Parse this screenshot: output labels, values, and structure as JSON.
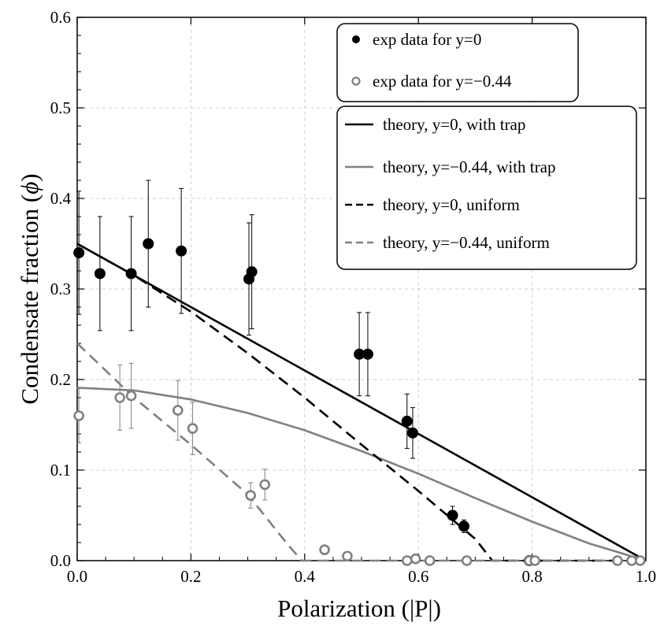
{
  "chart_data": {
    "type": "scatter",
    "title": "",
    "xlabel": "Polarization (|P|)",
    "ylabel_prefix": "Condensate fraction (",
    "ylabel_symbol": "ϕ",
    "ylabel_suffix": ")",
    "xlim": [
      0,
      1
    ],
    "ylim": [
      0,
      0.6
    ],
    "x_ticks": [
      0,
      0.2,
      0.4,
      0.6,
      0.8,
      1.0
    ],
    "x_tick_labels": [
      "0.0",
      "0.2",
      "0.4",
      "0.6",
      "0.8",
      "1.0"
    ],
    "y_ticks": [
      0,
      0.1,
      0.2,
      0.3,
      0.4,
      0.5,
      0.6
    ],
    "y_tick_labels": [
      "0.0",
      "0.1",
      "0.2",
      "0.3",
      "0.4",
      "0.5",
      "0.6"
    ],
    "grid": true,
    "legend_position": "top-right",
    "colors": {
      "black": "#000000",
      "gray": "#808080"
    },
    "scatter_series": [
      {
        "name": "exp data for y=0",
        "marker": "filled-circle",
        "color": "#000000",
        "points": [
          {
            "x": 0.003,
            "y": 0.34,
            "err": 0.068
          },
          {
            "x": 0.04,
            "y": 0.317,
            "err": 0.063
          },
          {
            "x": 0.095,
            "y": 0.317,
            "err": 0.063
          },
          {
            "x": 0.125,
            "y": 0.35,
            "err": 0.07
          },
          {
            "x": 0.183,
            "y": 0.342,
            "err": 0.069
          },
          {
            "x": 0.302,
            "y": 0.311,
            "err": 0.062
          },
          {
            "x": 0.307,
            "y": 0.319,
            "err": 0.063
          },
          {
            "x": 0.496,
            "y": 0.228,
            "err": 0.046
          },
          {
            "x": 0.511,
            "y": 0.228,
            "err": 0.046
          },
          {
            "x": 0.58,
            "y": 0.154,
            "err": 0.03
          },
          {
            "x": 0.59,
            "y": 0.141,
            "err": 0.028
          },
          {
            "x": 0.66,
            "y": 0.05,
            "err": 0.01
          },
          {
            "x": 0.68,
            "y": 0.038,
            "err": 0.007
          },
          {
            "x": 0.795,
            "y": 0.0,
            "err": 0.0
          }
        ]
      },
      {
        "name": "exp data for y=−0.44",
        "marker": "open-circle",
        "color": "#808080",
        "points": [
          {
            "x": 0.003,
            "y": 0.16,
            "err": 0.03
          },
          {
            "x": 0.075,
            "y": 0.18,
            "err": 0.036
          },
          {
            "x": 0.095,
            "y": 0.182,
            "err": 0.036
          },
          {
            "x": 0.177,
            "y": 0.166,
            "err": 0.033
          },
          {
            "x": 0.203,
            "y": 0.146,
            "err": 0.029
          },
          {
            "x": 0.305,
            "y": 0.072,
            "err": 0.014
          },
          {
            "x": 0.33,
            "y": 0.084,
            "err": 0.017
          },
          {
            "x": 0.435,
            "y": 0.012,
            "err": 0.003
          },
          {
            "x": 0.475,
            "y": 0.005,
            "err": 0.001
          },
          {
            "x": 0.58,
            "y": 0.0,
            "err": 0.0
          },
          {
            "x": 0.595,
            "y": 0.002,
            "err": 0.0
          },
          {
            "x": 0.62,
            "y": 0.0,
            "err": 0.0
          },
          {
            "x": 0.685,
            "y": 0.0,
            "err": 0.0
          },
          {
            "x": 0.795,
            "y": 0.0,
            "err": 0.0
          },
          {
            "x": 0.805,
            "y": 0.0,
            "err": 0.0
          },
          {
            "x": 0.95,
            "y": 0.0,
            "err": 0.0
          },
          {
            "x": 0.975,
            "y": 0.0,
            "err": 0.0
          },
          {
            "x": 0.99,
            "y": 0.0,
            "err": 0.0
          }
        ]
      }
    ],
    "line_series": [
      {
        "name": "theory, y=0, with trap",
        "color": "#000000",
        "dash": "solid",
        "points": [
          [
            0,
            0.35
          ],
          [
            1.0,
            0.0
          ]
        ]
      },
      {
        "name": "theory, y=−0.44, with trap",
        "color": "#808080",
        "dash": "solid",
        "points": [
          [
            0,
            0.191
          ],
          [
            0.1,
            0.188
          ],
          [
            0.2,
            0.178
          ],
          [
            0.3,
            0.163
          ],
          [
            0.4,
            0.144
          ],
          [
            0.5,
            0.121
          ],
          [
            0.6,
            0.096
          ],
          [
            0.7,
            0.069
          ],
          [
            0.8,
            0.043
          ],
          [
            0.9,
            0.019
          ],
          [
            1.0,
            0.0
          ]
        ]
      },
      {
        "name": "theory, y=0, uniform",
        "color": "#000000",
        "dash": "dashed",
        "points": [
          [
            0,
            0.35
          ],
          [
            0.1,
            0.315
          ],
          [
            0.2,
            0.275
          ],
          [
            0.3,
            0.229
          ],
          [
            0.4,
            0.18
          ],
          [
            0.5,
            0.128
          ],
          [
            0.6,
            0.077
          ],
          [
            0.7,
            0.024
          ],
          [
            0.73,
            0.0
          ],
          [
            1.0,
            0.0
          ]
        ]
      },
      {
        "name": "theory, y=−0.44, uniform",
        "color": "#808080",
        "dash": "dashed",
        "points": [
          [
            0,
            0.24
          ],
          [
            0.1,
            0.18
          ],
          [
            0.2,
            0.128
          ],
          [
            0.3,
            0.073
          ],
          [
            0.37,
            0.018
          ],
          [
            0.395,
            0.0
          ],
          [
            1.0,
            0.0
          ]
        ]
      }
    ]
  }
}
